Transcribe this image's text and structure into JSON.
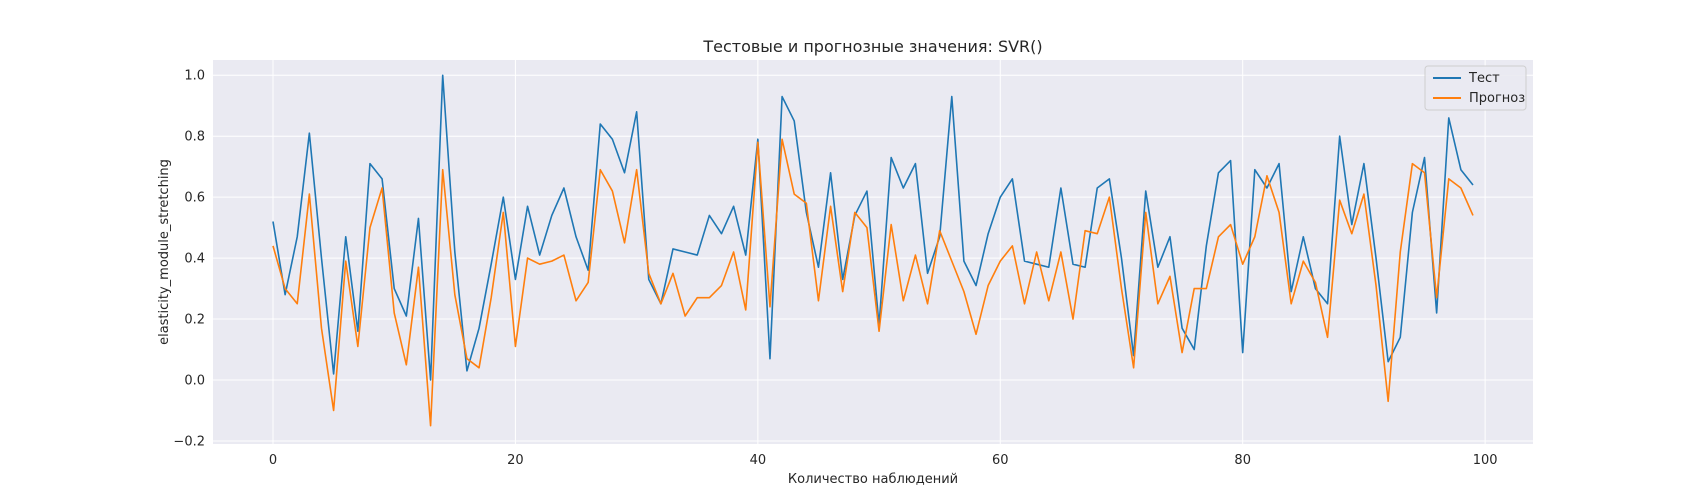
{
  "chart_data": {
    "type": "line",
    "title": "Тестовые и прогнозные значения: SVR()",
    "xlabel": "Количество наблюдений",
    "ylabel": "elasticity_module_stretching",
    "xlim": [
      -4.95,
      103.95
    ],
    "ylim": [
      -0.21,
      1.05
    ],
    "xticks": [
      0,
      20,
      40,
      60,
      80,
      100
    ],
    "yticks": [
      -0.2,
      0.0,
      0.2,
      0.4,
      0.6,
      0.8,
      1.0
    ],
    "ytick_labels": [
      "−0.2",
      "0.0",
      "0.2",
      "0.4",
      "0.6",
      "0.8",
      "1.0"
    ],
    "grid": true,
    "legend_position": "top-right",
    "x": [
      0,
      1,
      2,
      3,
      4,
      5,
      6,
      7,
      8,
      9,
      10,
      11,
      12,
      13,
      14,
      15,
      16,
      17,
      18,
      19,
      20,
      21,
      22,
      23,
      24,
      25,
      26,
      27,
      28,
      29,
      30,
      31,
      32,
      33,
      34,
      35,
      36,
      37,
      38,
      39,
      40,
      41,
      42,
      43,
      44,
      45,
      46,
      47,
      48,
      49,
      50,
      51,
      52,
      53,
      54,
      55,
      56,
      57,
      58,
      59,
      60,
      61,
      62,
      63,
      64,
      65,
      66,
      67,
      68,
      69,
      70,
      71,
      72,
      73,
      74,
      75,
      76,
      77,
      78,
      79,
      80,
      81,
      82,
      83,
      84,
      85,
      86,
      87,
      88,
      89,
      90,
      91,
      92,
      93,
      94,
      95,
      96,
      97,
      98,
      99
    ],
    "series": [
      {
        "name": "Тест",
        "color": "#1f77b4",
        "values": [
          0.52,
          0.28,
          0.47,
          0.81,
          0.4,
          0.02,
          0.47,
          0.16,
          0.71,
          0.66,
          0.3,
          0.21,
          0.53,
          0.0,
          1.0,
          0.42,
          0.03,
          0.17,
          0.38,
          0.6,
          0.33,
          0.57,
          0.41,
          0.54,
          0.63,
          0.47,
          0.36,
          0.84,
          0.79,
          0.68,
          0.88,
          0.33,
          0.25,
          0.43,
          0.42,
          0.41,
          0.54,
          0.48,
          0.57,
          0.41,
          0.79,
          0.07,
          0.93,
          0.85,
          0.55,
          0.37,
          0.68,
          0.33,
          0.54,
          0.62,
          0.18,
          0.73,
          0.63,
          0.71,
          0.35,
          0.47,
          0.93,
          0.39,
          0.31,
          0.48,
          0.6,
          0.66,
          0.39,
          0.38,
          0.37,
          0.63,
          0.38,
          0.37,
          0.63,
          0.66,
          0.4,
          0.08,
          0.62,
          0.37,
          0.47,
          0.17,
          0.1,
          0.44,
          0.68,
          0.72,
          0.09,
          0.69,
          0.63,
          0.71,
          0.29,
          0.47,
          0.3,
          0.25,
          0.8,
          0.51,
          0.71,
          0.4,
          0.06,
          0.14,
          0.55,
          0.73,
          0.22,
          0.86,
          0.69,
          0.64
        ]
      },
      {
        "name": "Прогноз",
        "color": "#ff7f0e",
        "values": [
          0.44,
          0.3,
          0.25,
          0.61,
          0.17,
          -0.1,
          0.39,
          0.11,
          0.5,
          0.63,
          0.22,
          0.05,
          0.37,
          -0.15,
          0.69,
          0.28,
          0.07,
          0.04,
          0.27,
          0.55,
          0.11,
          0.4,
          0.38,
          0.39,
          0.41,
          0.26,
          0.32,
          0.69,
          0.62,
          0.45,
          0.69,
          0.35,
          0.25,
          0.35,
          0.21,
          0.27,
          0.27,
          0.31,
          0.42,
          0.23,
          0.78,
          0.24,
          0.79,
          0.61,
          0.58,
          0.26,
          0.57,
          0.29,
          0.55,
          0.5,
          0.16,
          0.51,
          0.26,
          0.41,
          0.25,
          0.49,
          0.39,
          0.29,
          0.15,
          0.31,
          0.39,
          0.44,
          0.25,
          0.42,
          0.26,
          0.42,
          0.2,
          0.49,
          0.48,
          0.6,
          0.3,
          0.04,
          0.55,
          0.25,
          0.34,
          0.09,
          0.3,
          0.3,
          0.47,
          0.51,
          0.38,
          0.47,
          0.67,
          0.55,
          0.25,
          0.39,
          0.32,
          0.14,
          0.59,
          0.48,
          0.61,
          0.31,
          -0.07,
          0.42,
          0.71,
          0.68,
          0.27,
          0.66,
          0.63,
          0.54
        ]
      }
    ]
  }
}
